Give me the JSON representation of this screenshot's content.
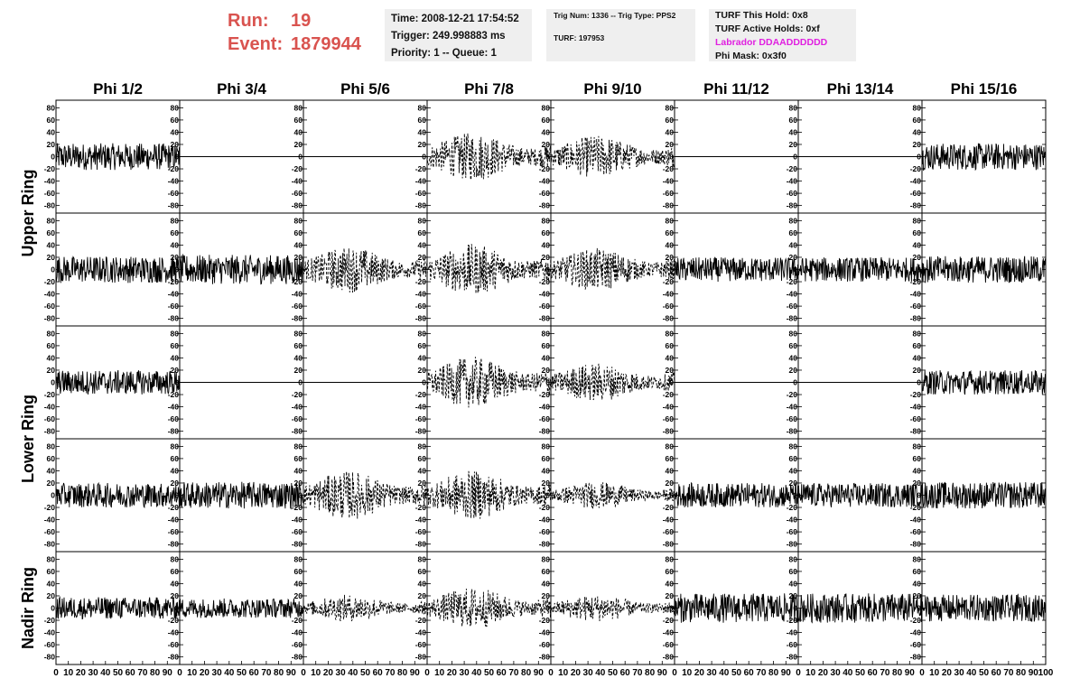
{
  "header": {
    "run_label": "Run:",
    "run_value": "19",
    "event_label": "Event:",
    "event_value": "1879944",
    "time": "Time: 2008-12-21 17:54:52",
    "trigger": "Trigger: 249.998883 ms",
    "priority": "Priority: 1 -- Queue: 1",
    "trig_num": "Trig Num: 1336 -- Trig Type: PPS2",
    "turf": "TURF: 197953",
    "turf_hold": "TURF This Hold: 0x8",
    "turf_active": "TURF Active Holds: 0xf",
    "labrador": "Labrador DDAADDDDDD",
    "phi_mask": "Phi Mask: 0x3f0"
  },
  "colors": {
    "title": "#d9534f",
    "labrador": "#e020e0",
    "box": "#efefef"
  },
  "chart_data": {
    "type": "line",
    "columns": [
      "Phi 1/2",
      "Phi 3/4",
      "Phi 5/6",
      "Phi 7/8",
      "Phi 9/10",
      "Phi 11/12",
      "Phi 13/14",
      "Phi 15/16"
    ],
    "ring_labels": [
      {
        "text": "Upper Ring",
        "rows": [
          0,
          1
        ]
      },
      {
        "text": "Lower Ring",
        "rows": [
          2,
          3
        ]
      },
      {
        "text": "Nadir Ring",
        "rows": [
          4
        ]
      }
    ],
    "xlim": [
      0,
      100
    ],
    "ylim": [
      -85,
      85
    ],
    "x_ticks": [
      0,
      10,
      20,
      30,
      40,
      50,
      60,
      70,
      80,
      90,
      100
    ],
    "y_ticks": [
      -80,
      -60,
      -40,
      -20,
      0,
      20,
      40,
      60,
      80
    ],
    "waveform_samples": 260,
    "panel_styles": [
      [
        "solid",
        "flat",
        "flat",
        "dashed",
        "dashed",
        "flat",
        "flat",
        "solid"
      ],
      [
        "solid",
        "solid",
        "dashed",
        "dashed",
        "dashed",
        "solid",
        "solid",
        "solid"
      ],
      [
        "solid",
        "flat",
        "flat",
        "dashed",
        "dashed",
        "flat",
        "flat",
        "solid"
      ],
      [
        "solid",
        "solid",
        "dashed",
        "dashed",
        "dashed",
        "solid",
        "solid",
        "solid"
      ],
      [
        "solid",
        "solid",
        "dashed",
        "dashed",
        "dashed",
        "solid",
        "solid",
        "solid"
      ]
    ],
    "panel_amplitudes": [
      [
        22,
        0,
        0,
        40,
        35,
        0,
        0,
        22
      ],
      [
        22,
        24,
        38,
        42,
        35,
        20,
        20,
        22
      ],
      [
        20,
        0,
        0,
        42,
        32,
        0,
        0,
        20
      ],
      [
        20,
        22,
        40,
        40,
        22,
        20,
        20,
        22
      ],
      [
        18,
        16,
        22,
        34,
        22,
        24,
        24,
        22
      ]
    ]
  }
}
